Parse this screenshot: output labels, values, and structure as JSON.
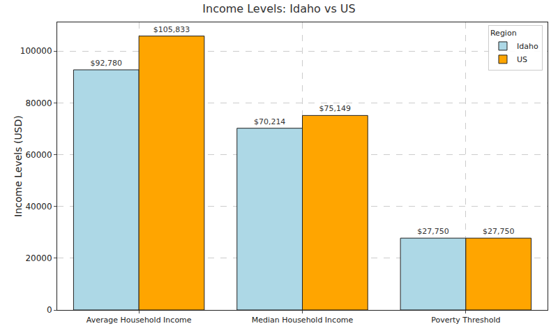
{
  "chart_data": {
    "type": "bar",
    "title": "Income Levels: Idaho vs US",
    "y_label": "Income Levels (USD)",
    "categories": [
      "Average Household Income",
      "Median Household Income",
      "Poverty Threshold"
    ],
    "series": [
      {
        "name": "Idaho",
        "color": "#add8e6",
        "values": [
          92780,
          70214,
          27750
        ],
        "value_labels": [
          "$92,780",
          "$70,214",
          "$27,750"
        ]
      },
      {
        "name": "US",
        "color": "#ffa500",
        "values": [
          105833,
          75149,
          27750
        ],
        "value_labels": [
          "$105,833",
          "$75,149",
          "$27,750"
        ]
      }
    ],
    "ylim": [
      0,
      111125
    ],
    "yticks": [
      0,
      20000,
      40000,
      60000,
      80000,
      100000
    ],
    "grid": true,
    "legend": "upper right",
    "legend_title": "Region",
    "data_labels": true
  }
}
